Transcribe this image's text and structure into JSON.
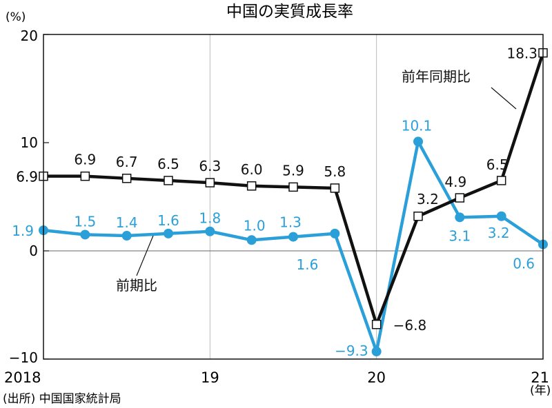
{
  "chart_data": {
    "type": "line",
    "title": "中国の実質成長率",
    "y_unit": "(%)",
    "x_unit": "(年)",
    "source": "(出所) 中国国家統計局",
    "ylim": [
      -10,
      20
    ],
    "y_ticks": [
      20,
      10,
      0,
      -10
    ],
    "extra_y_tick": "6.9",
    "x_tick_labels": [
      {
        "label": "2018",
        "quarter": 0
      },
      {
        "label": "19",
        "quarter": 4
      },
      {
        "label": "20",
        "quarter": 8
      },
      {
        "label": "21",
        "quarter": 12
      }
    ],
    "grid": "vertical at year boundaries, zero line",
    "colors": {
      "yoy": "#111111",
      "qoq": "#2a9fd8",
      "grid": "#bbbbbb"
    },
    "series": [
      {
        "name": "前年同期比",
        "x": [
          0,
          1,
          2,
          3,
          4,
          5,
          6,
          7,
          8,
          9,
          10,
          11,
          12
        ],
        "values": [
          6.9,
          6.9,
          6.7,
          6.5,
          6.3,
          6.0,
          5.9,
          5.8,
          -6.8,
          3.2,
          4.9,
          6.5,
          18.3
        ],
        "labels": [
          "6.9",
          "6.9",
          "6.7",
          "6.5",
          "6.3",
          "6.0",
          "5.9",
          "5.8",
          "−6.8",
          "3.2",
          "4.9",
          "6.5",
          "18.3"
        ],
        "marker": "square"
      },
      {
        "name": "前期比",
        "x": [
          0,
          1,
          2,
          3,
          4,
          5,
          6,
          7,
          8,
          9,
          10,
          11,
          12
        ],
        "values": [
          1.9,
          1.5,
          1.4,
          1.6,
          1.8,
          1.0,
          1.3,
          1.6,
          -9.3,
          10.1,
          3.1,
          3.2,
          0.6
        ],
        "labels": [
          "1.9",
          "1.5",
          "1.4",
          "1.6",
          "1.8",
          "1.0",
          "1.3",
          "1.6",
          "−9.3",
          "10.1",
          "3.1",
          "3.2",
          "0.6"
        ],
        "marker": "circle"
      }
    ]
  }
}
